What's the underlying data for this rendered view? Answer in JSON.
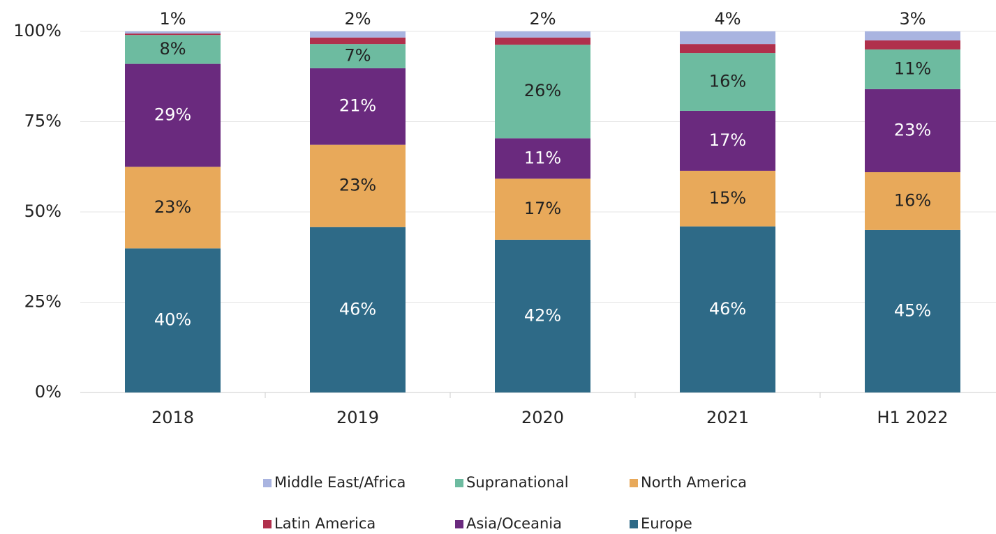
{
  "chart_data": {
    "type": "stacked_bar",
    "categories": [
      "2018",
      "2019",
      "2020",
      "2021",
      "H1 2022"
    ],
    "series": [
      {
        "name": "Europe",
        "color": "#2e6a87",
        "values": [
          39.9,
          45.8,
          42.3,
          46.0,
          45.0
        ],
        "value_labels": [
          "40%",
          "46%",
          "42%",
          "46%",
          "45%"
        ]
      },
      {
        "name": "North America",
        "color": "#e8a95a",
        "values": [
          22.6,
          22.8,
          16.9,
          15.4,
          16.0
        ],
        "value_labels": [
          "23%",
          "23%",
          "17%",
          "15%",
          "16%"
        ]
      },
      {
        "name": "Asia/Oceania",
        "color": "#6a2a7e",
        "values": [
          28.5,
          21.2,
          11.2,
          16.6,
          23.0
        ],
        "value_labels": [
          "29%",
          "21%",
          "11%",
          "17%",
          "23%"
        ]
      },
      {
        "name": "Supranational",
        "color": "#6dbba0",
        "values": [
          8.0,
          6.7,
          25.9,
          16.0,
          11.0
        ],
        "value_labels": [
          "8%",
          "7%",
          "26%",
          "16%",
          "11%"
        ]
      },
      {
        "name": "Latin America",
        "color": "#b0304c",
        "values": [
          0.4,
          1.8,
          2.0,
          2.5,
          2.5
        ]
      },
      {
        "name": "Middle East/Africa",
        "color": "#a9b4e0",
        "values": [
          0.6,
          1.7,
          1.7,
          3.5,
          2.5
        ],
        "value_labels": [
          "1%",
          "2%",
          "2%",
          "4%",
          "3%"
        ]
      }
    ],
    "ylim": [
      0,
      100
    ],
    "yticks": [
      {
        "value": 0,
        "label": "0%"
      },
      {
        "value": 25,
        "label": "25%"
      },
      {
        "value": 50,
        "label": "50%"
      },
      {
        "value": 75,
        "label": "75%"
      },
      {
        "value": 100,
        "label": "100%"
      }
    ],
    "grid": true,
    "legend": "bottom"
  }
}
